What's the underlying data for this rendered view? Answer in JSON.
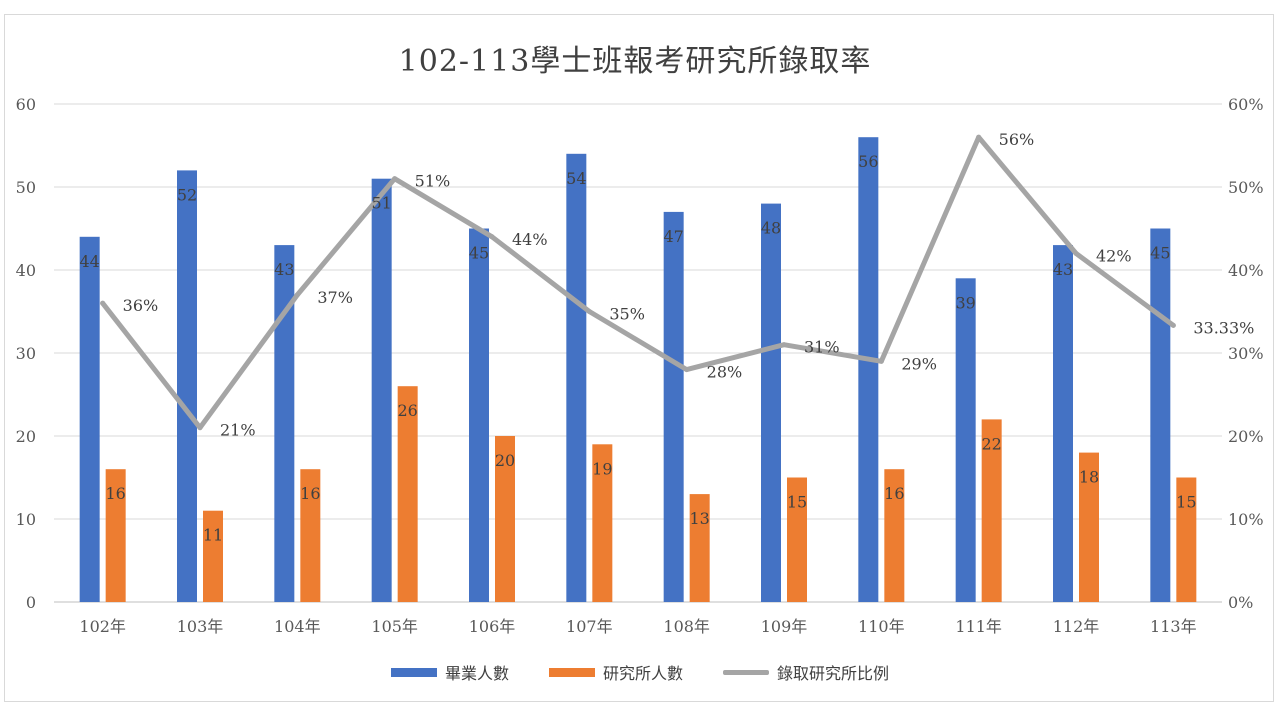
{
  "chart_data": {
    "type": "bar",
    "title": "102-113學士班報考研究所錄取率",
    "categories": [
      "102年",
      "103年",
      "104年",
      "105年",
      "106年",
      "107年",
      "108年",
      "109年",
      "110年",
      "111年",
      "112年",
      "113年"
    ],
    "series": [
      {
        "name": "畢業人數",
        "type": "bar",
        "axis": "left",
        "color": "#4472c4",
        "values": [
          44,
          52,
          43,
          51,
          45,
          54,
          47,
          48,
          56,
          39,
          43,
          45
        ],
        "labels": [
          "44",
          "52",
          "43",
          "51",
          "45",
          "54",
          "47",
          "48",
          "56",
          "39",
          "43",
          "45"
        ]
      },
      {
        "name": "研究所人數",
        "type": "bar",
        "axis": "left",
        "color": "#ed7d31",
        "values": [
          16,
          11,
          16,
          26,
          20,
          19,
          13,
          15,
          16,
          22,
          18,
          15
        ],
        "labels": [
          "16",
          "11",
          "16",
          "26",
          "20",
          "19",
          "13",
          "15",
          "16",
          "22",
          "18",
          "15"
        ]
      },
      {
        "name": "錄取研究所比例",
        "type": "line",
        "axis": "right",
        "color": "#a5a5a5",
        "values": [
          0.36,
          0.21,
          0.37,
          0.51,
          0.44,
          0.35,
          0.28,
          0.31,
          0.29,
          0.56,
          0.42,
          0.3333
        ],
        "labels": [
          "36%",
          "21%",
          "37%",
          "51%",
          "44%",
          "35%",
          "28%",
          "31%",
          "29%",
          "56%",
          "42%",
          "33.33%"
        ]
      }
    ],
    "y_left": {
      "min": 0,
      "max": 60,
      "ticks": [
        "0",
        "10",
        "20",
        "30",
        "40",
        "50",
        "60"
      ]
    },
    "y_right": {
      "min": 0,
      "max": 0.6,
      "ticks": [
        "0%",
        "10%",
        "20%",
        "30%",
        "40%",
        "50%",
        "60%"
      ]
    },
    "grid": true,
    "legend": "bottom"
  }
}
